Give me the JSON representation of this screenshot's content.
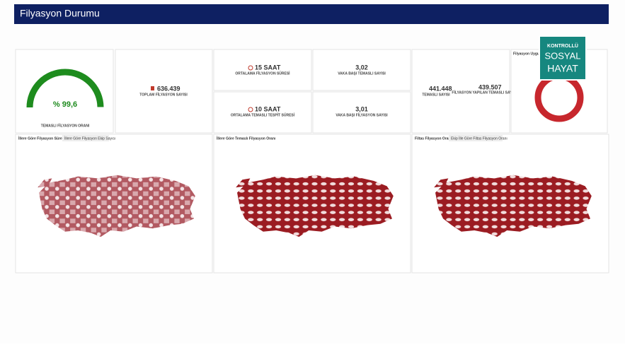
{
  "header": {
    "title": "Filyasyon Durumu"
  },
  "gauge": {
    "value": 99.6,
    "label": "% 99,6",
    "caption": "TEMASLI FİLYASYON ORANI"
  },
  "kpis": {
    "total": {
      "value": "636.439",
      "label": "TOPLAM FİLYASYON SAYISI"
    },
    "duration": {
      "value": "15 SAAT",
      "label": "ORTALAMA FİLYASYON SÜRESİ"
    },
    "contact_time": {
      "value": "10 SAAT",
      "label": "ORTALAMA TEMASLI TESPİT SÜRESİ"
    },
    "contacts_per_case": {
      "value": "3,02",
      "label": "VAKA BAŞI TEMASLI SAYISI"
    },
    "filiation_per_case": {
      "value": "3,01",
      "label": "VAKA BAŞI FİLYASYON SAYISI"
    },
    "contacts": {
      "value": "441.448",
      "label": "TEMASLI SAYISI"
    },
    "contacts_done": {
      "value": "439.507",
      "label": "FİLYASYON YAPILAN TEMASLI SAYISI"
    }
  },
  "donut": {
    "title": "Filyasyon Uygula"
  },
  "logo": {
    "line1": "KONTROLLÜ",
    "line2": "SOSYAL",
    "line3": "HAYAT"
  },
  "maps": [
    {
      "tab1": "İllere Göre Filyasyon Süresi",
      "tab2": "İllere Göre Filyasyon Ekip Sayısı"
    },
    {
      "tab1": "İllere Göre Temaslı Filyasyon Oranı"
    },
    {
      "tab1": "Filtas Filyasyon Oranı",
      "tab2": "Ekip İlle Göre Filtas Filyasyon Oranı"
    }
  ]
}
